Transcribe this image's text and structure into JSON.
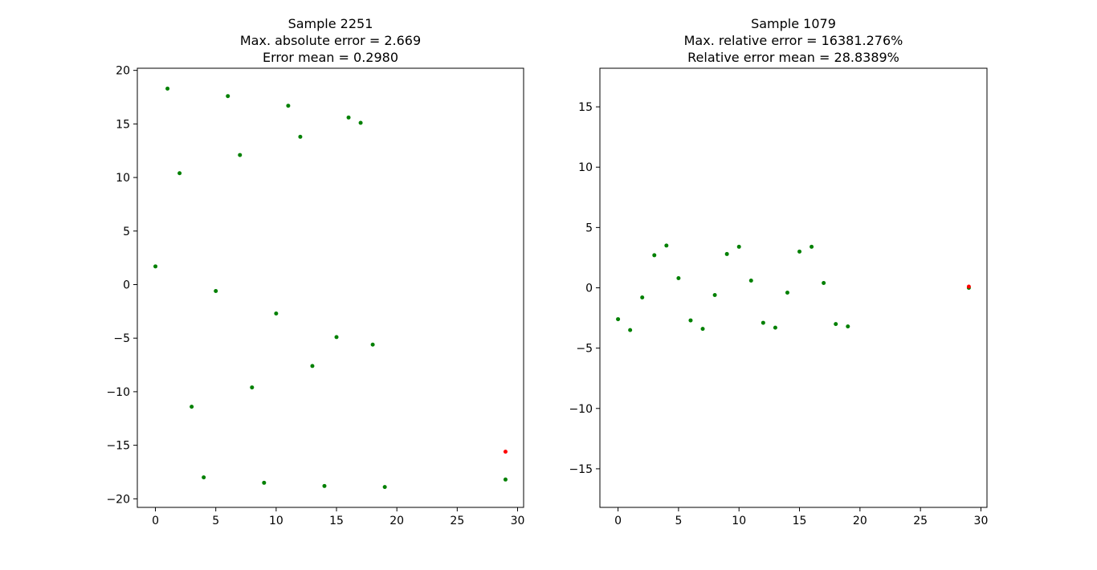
{
  "colors": {
    "ground_truth": "#008000",
    "prediction": "#ff0000",
    "axes": "#000000",
    "background": "#ffffff"
  },
  "chart_data": [
    {
      "type": "scatter",
      "title_lines": [
        "Sample 2251",
        "Max. absolute error = 2.669",
        "Error mean = 0.2980"
      ],
      "xlabel": "",
      "ylabel": "",
      "xlim": [
        -1.5,
        30.5
      ],
      "ylim": [
        -20.8,
        20.2
      ],
      "xticks": [
        0,
        5,
        10,
        15,
        20,
        25,
        30
      ],
      "xtick_labels": [
        "0",
        "5",
        "10",
        "15",
        "20",
        "25",
        "30"
      ],
      "yticks": [
        -20,
        -15,
        -10,
        -5,
        0,
        5,
        10,
        15,
        20
      ],
      "ytick_labels": [
        "−20",
        "−15",
        "−10",
        "−5",
        "0",
        "5",
        "10",
        "15",
        "20"
      ],
      "grid": false,
      "series": [
        {
          "color": "#008000",
          "points": [
            [
              0,
              1.7
            ],
            [
              1,
              18.3
            ],
            [
              2,
              10.4
            ],
            [
              3,
              -11.4
            ],
            [
              4,
              -18.0
            ],
            [
              5,
              -0.6
            ],
            [
              6,
              17.6
            ],
            [
              7,
              12.1
            ],
            [
              8,
              -9.6
            ],
            [
              9,
              -18.5
            ],
            [
              10,
              -2.7
            ],
            [
              11,
              16.7
            ],
            [
              12,
              13.8
            ],
            [
              13,
              -7.6
            ],
            [
              14,
              -18.8
            ],
            [
              15,
              -4.9
            ],
            [
              16,
              15.6
            ],
            [
              17,
              15.1
            ],
            [
              18,
              -5.6
            ],
            [
              19,
              -18.9
            ],
            [
              29,
              -18.2
            ]
          ]
        },
        {
          "color": "#ff0000",
          "points": [
            [
              29,
              -15.6
            ]
          ]
        }
      ]
    },
    {
      "type": "scatter",
      "title_lines": [
        "Sample 1079",
        "Max. relative error = 16381.276%",
        "Relative error mean = 28.8389%"
      ],
      "xlabel": "",
      "ylabel": "",
      "xlim": [
        -1.5,
        30.5
      ],
      "ylim": [
        -18.2,
        18.2
      ],
      "xticks": [
        0,
        5,
        10,
        15,
        20,
        25,
        30
      ],
      "xtick_labels": [
        "0",
        "5",
        "10",
        "15",
        "20",
        "25",
        "30"
      ],
      "yticks": [
        -15,
        -10,
        -5,
        0,
        5,
        10,
        15
      ],
      "ytick_labels": [
        "−15",
        "−10",
        "−5",
        "0",
        "5",
        "10",
        "15"
      ],
      "grid": false,
      "series": [
        {
          "color": "#008000",
          "points": [
            [
              0,
              -2.6
            ],
            [
              1,
              -3.5
            ],
            [
              2,
              -0.8
            ],
            [
              3,
              2.7
            ],
            [
              4,
              3.5
            ],
            [
              5,
              0.8
            ],
            [
              6,
              -2.7
            ],
            [
              7,
              -3.4
            ],
            [
              8,
              -0.6
            ],
            [
              9,
              2.8
            ],
            [
              10,
              3.4
            ],
            [
              11,
              0.6
            ],
            [
              12,
              -2.9
            ],
            [
              13,
              -3.3
            ],
            [
              14,
              -0.4
            ],
            [
              15,
              3.0
            ],
            [
              16,
              3.4
            ],
            [
              17,
              0.4
            ],
            [
              18,
              -3.0
            ],
            [
              19,
              -3.2
            ],
            [
              29,
              0.0
            ]
          ]
        },
        {
          "color": "#ff0000",
          "points": [
            [
              29,
              0.1
            ]
          ]
        }
      ]
    }
  ]
}
